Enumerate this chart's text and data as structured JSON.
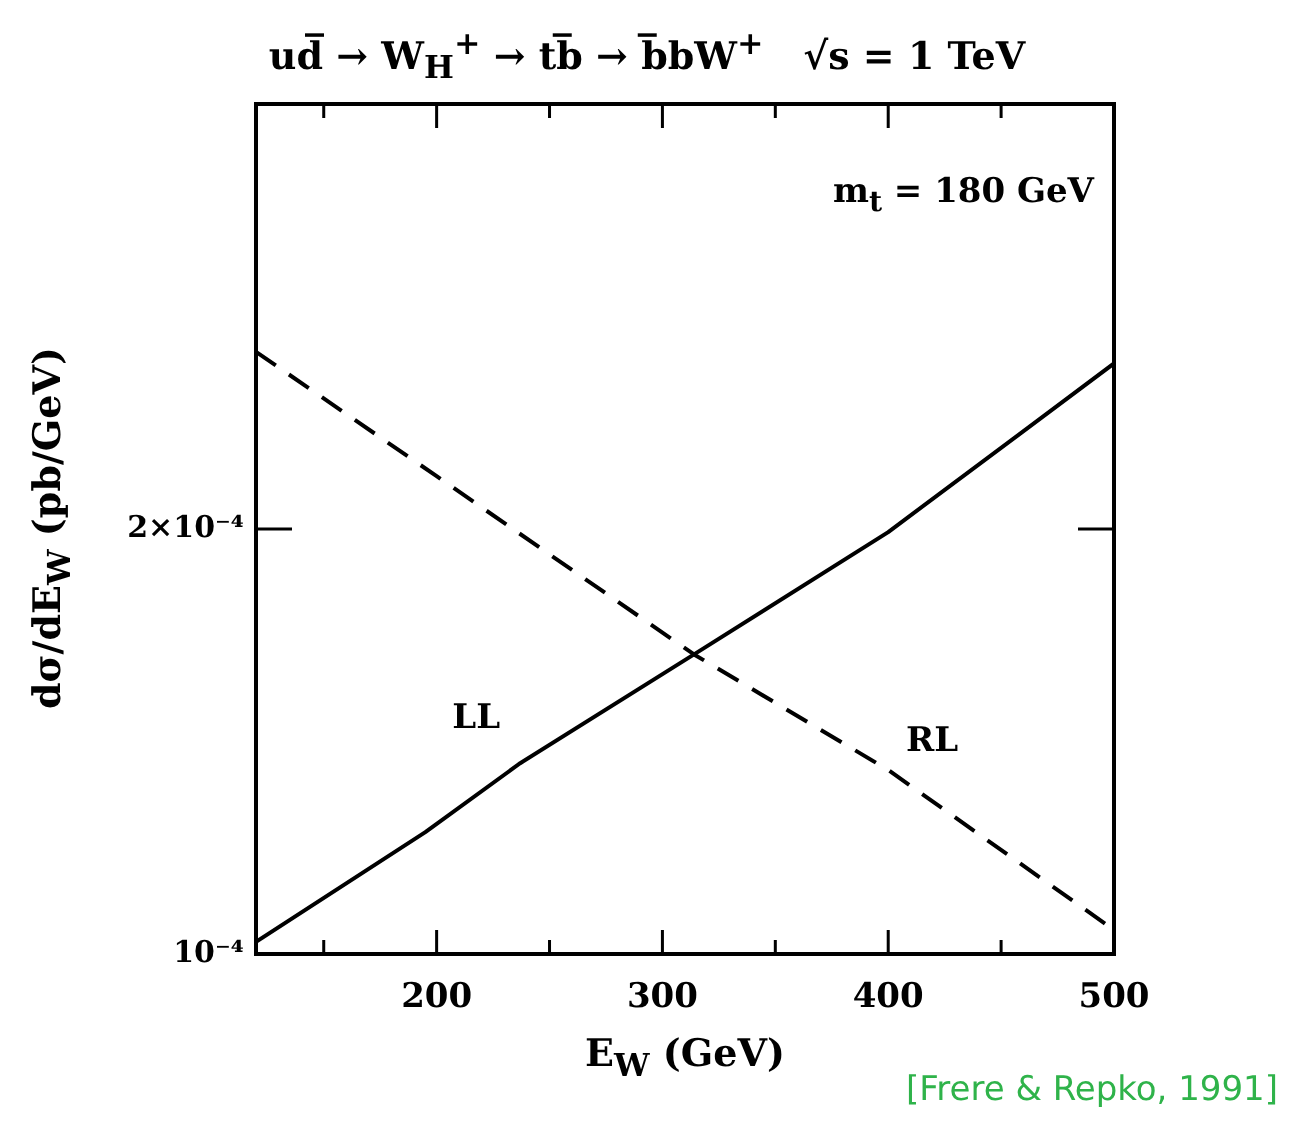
{
  "chart_data": {
    "type": "line",
    "title": "ud̅ → W$_{H}$$^{+}$ → tb̅ → b̅bW$^{+}$   √s = 1 TeV",
    "xlabel": "E$_{W}$ (GeV)",
    "ylabel": "dσ/dE$_{W}$ (pb/GeV)",
    "annotations": [
      "m$_{t}$ = 180 GeV",
      "[Frere & Repko, 1991]"
    ],
    "log": true,
    "grid": false,
    "legend": false,
    "marker": "none",
    "xlim": [
      120,
      500
    ],
    "xticks": [
      {
        "value": 150,
        "label": null
      },
      200,
      {
        "value": 250,
        "label": null
      },
      300,
      {
        "value": 350,
        "label": null
      },
      400,
      {
        "value": 450,
        "label": null
      },
      500
    ],
    "ylim": [
      0.0001,
      0.0004
    ],
    "yticks": [
      {
        "value": 0.0001,
        "label": "10⁻⁴"
      },
      {
        "value": 0.0002,
        "label": "2×10⁻⁴"
      }
    ],
    "series": [
      {
        "name": "LL",
        "color": "#000000",
        "line_style": "solid",
        "x": [
          120,
          195,
          237,
          314,
          400,
          500
        ],
        "values": [
          0.000102,
          0.000122,
          0.0001365,
          0.000163,
          0.000199,
          0.000262
        ]
      },
      {
        "name": "RL",
        "color": "#000000",
        "line_style": "dashed",
        "x": [
          120,
          200,
          314,
          400,
          500
        ],
        "values": [
          0.000267,
          0.000218,
          0.000163,
          0.000135,
          0.000104
        ]
      }
    ]
  }
}
